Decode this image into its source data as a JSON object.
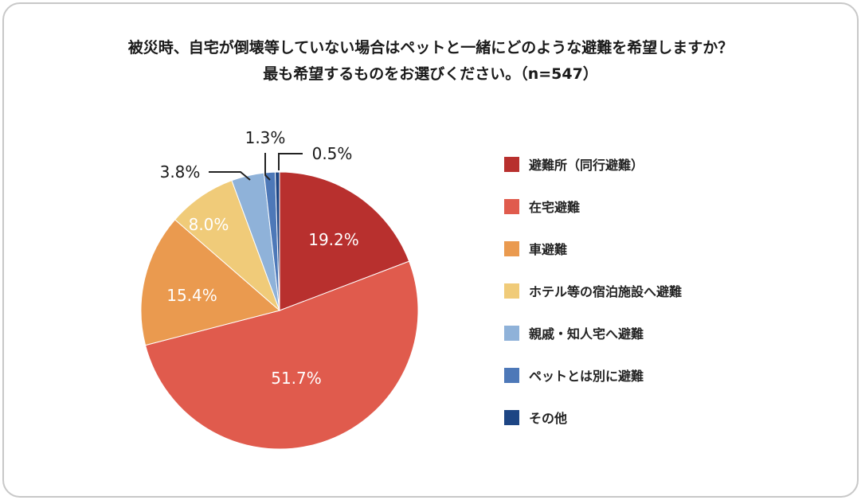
{
  "chart_data": {
    "type": "pie",
    "title": "被災時、自宅が倒壊等していない場合はペットと一緒にどのような避難を希望しますか？",
    "subtitle": "最も希望するものをお選びください。（n=547）",
    "slices": [
      {
        "label": "避難所（同行避難）",
        "value": 19.2,
        "value_label": "19.2%",
        "color": "#b8302e"
      },
      {
        "label": "在宅避難",
        "value": 51.7,
        "value_label": "51.7%",
        "color": "#e05b4d"
      },
      {
        "label": "車避難",
        "value": 15.4,
        "value_label": "15.4%",
        "color": "#ea9a4f"
      },
      {
        "label": "ホテル等の宿泊施設へ避難",
        "value": 8.0,
        "value_label": "8.0%",
        "color": "#f0cb79"
      },
      {
        "label": "親戚・知人宅へ避難",
        "value": 3.8,
        "value_label": "3.8%",
        "color": "#8fb2d9"
      },
      {
        "label": "ペットとは別に避難",
        "value": 1.3,
        "value_label": "1.3%",
        "color": "#4d78b8"
      },
      {
        "label": "その他",
        "value": 0.5,
        "value_label": "0.5%",
        "color": "#1d4584"
      }
    ],
    "start_angle": "12 o'clock",
    "direction": "clockwise",
    "legend_position": "right"
  }
}
